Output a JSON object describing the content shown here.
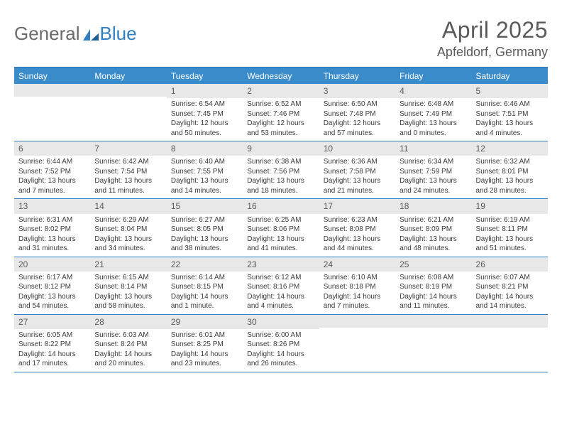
{
  "brand": {
    "part1": "General",
    "part2": "Blue"
  },
  "title": "April 2025",
  "location": "Apfeldorf, Germany",
  "colors": {
    "header_bg": "#3a8bc9",
    "border": "#2f7fc2",
    "daynum_bg": "#e8e8e8",
    "text": "#3a3a3a",
    "title_text": "#5a5a5a"
  },
  "day_names": [
    "Sunday",
    "Monday",
    "Tuesday",
    "Wednesday",
    "Thursday",
    "Friday",
    "Saturday"
  ],
  "weeks": [
    [
      {
        "n": "",
        "t": ""
      },
      {
        "n": "",
        "t": ""
      },
      {
        "n": "1",
        "t": "Sunrise: 6:54 AM\nSunset: 7:45 PM\nDaylight: 12 hours and 50 minutes."
      },
      {
        "n": "2",
        "t": "Sunrise: 6:52 AM\nSunset: 7:46 PM\nDaylight: 12 hours and 53 minutes."
      },
      {
        "n": "3",
        "t": "Sunrise: 6:50 AM\nSunset: 7:48 PM\nDaylight: 12 hours and 57 minutes."
      },
      {
        "n": "4",
        "t": "Sunrise: 6:48 AM\nSunset: 7:49 PM\nDaylight: 13 hours and 0 minutes."
      },
      {
        "n": "5",
        "t": "Sunrise: 6:46 AM\nSunset: 7:51 PM\nDaylight: 13 hours and 4 minutes."
      }
    ],
    [
      {
        "n": "6",
        "t": "Sunrise: 6:44 AM\nSunset: 7:52 PM\nDaylight: 13 hours and 7 minutes."
      },
      {
        "n": "7",
        "t": "Sunrise: 6:42 AM\nSunset: 7:54 PM\nDaylight: 13 hours and 11 minutes."
      },
      {
        "n": "8",
        "t": "Sunrise: 6:40 AM\nSunset: 7:55 PM\nDaylight: 13 hours and 14 minutes."
      },
      {
        "n": "9",
        "t": "Sunrise: 6:38 AM\nSunset: 7:56 PM\nDaylight: 13 hours and 18 minutes."
      },
      {
        "n": "10",
        "t": "Sunrise: 6:36 AM\nSunset: 7:58 PM\nDaylight: 13 hours and 21 minutes."
      },
      {
        "n": "11",
        "t": "Sunrise: 6:34 AM\nSunset: 7:59 PM\nDaylight: 13 hours and 24 minutes."
      },
      {
        "n": "12",
        "t": "Sunrise: 6:32 AM\nSunset: 8:01 PM\nDaylight: 13 hours and 28 minutes."
      }
    ],
    [
      {
        "n": "13",
        "t": "Sunrise: 6:31 AM\nSunset: 8:02 PM\nDaylight: 13 hours and 31 minutes."
      },
      {
        "n": "14",
        "t": "Sunrise: 6:29 AM\nSunset: 8:04 PM\nDaylight: 13 hours and 34 minutes."
      },
      {
        "n": "15",
        "t": "Sunrise: 6:27 AM\nSunset: 8:05 PM\nDaylight: 13 hours and 38 minutes."
      },
      {
        "n": "16",
        "t": "Sunrise: 6:25 AM\nSunset: 8:06 PM\nDaylight: 13 hours and 41 minutes."
      },
      {
        "n": "17",
        "t": "Sunrise: 6:23 AM\nSunset: 8:08 PM\nDaylight: 13 hours and 44 minutes."
      },
      {
        "n": "18",
        "t": "Sunrise: 6:21 AM\nSunset: 8:09 PM\nDaylight: 13 hours and 48 minutes."
      },
      {
        "n": "19",
        "t": "Sunrise: 6:19 AM\nSunset: 8:11 PM\nDaylight: 13 hours and 51 minutes."
      }
    ],
    [
      {
        "n": "20",
        "t": "Sunrise: 6:17 AM\nSunset: 8:12 PM\nDaylight: 13 hours and 54 minutes."
      },
      {
        "n": "21",
        "t": "Sunrise: 6:15 AM\nSunset: 8:14 PM\nDaylight: 13 hours and 58 minutes."
      },
      {
        "n": "22",
        "t": "Sunrise: 6:14 AM\nSunset: 8:15 PM\nDaylight: 14 hours and 1 minute."
      },
      {
        "n": "23",
        "t": "Sunrise: 6:12 AM\nSunset: 8:16 PM\nDaylight: 14 hours and 4 minutes."
      },
      {
        "n": "24",
        "t": "Sunrise: 6:10 AM\nSunset: 8:18 PM\nDaylight: 14 hours and 7 minutes."
      },
      {
        "n": "25",
        "t": "Sunrise: 6:08 AM\nSunset: 8:19 PM\nDaylight: 14 hours and 11 minutes."
      },
      {
        "n": "26",
        "t": "Sunrise: 6:07 AM\nSunset: 8:21 PM\nDaylight: 14 hours and 14 minutes."
      }
    ],
    [
      {
        "n": "27",
        "t": "Sunrise: 6:05 AM\nSunset: 8:22 PM\nDaylight: 14 hours and 17 minutes."
      },
      {
        "n": "28",
        "t": "Sunrise: 6:03 AM\nSunset: 8:24 PM\nDaylight: 14 hours and 20 minutes."
      },
      {
        "n": "29",
        "t": "Sunrise: 6:01 AM\nSunset: 8:25 PM\nDaylight: 14 hours and 23 minutes."
      },
      {
        "n": "30",
        "t": "Sunrise: 6:00 AM\nSunset: 8:26 PM\nDaylight: 14 hours and 26 minutes."
      },
      {
        "n": "",
        "t": ""
      },
      {
        "n": "",
        "t": ""
      },
      {
        "n": "",
        "t": ""
      }
    ]
  ]
}
